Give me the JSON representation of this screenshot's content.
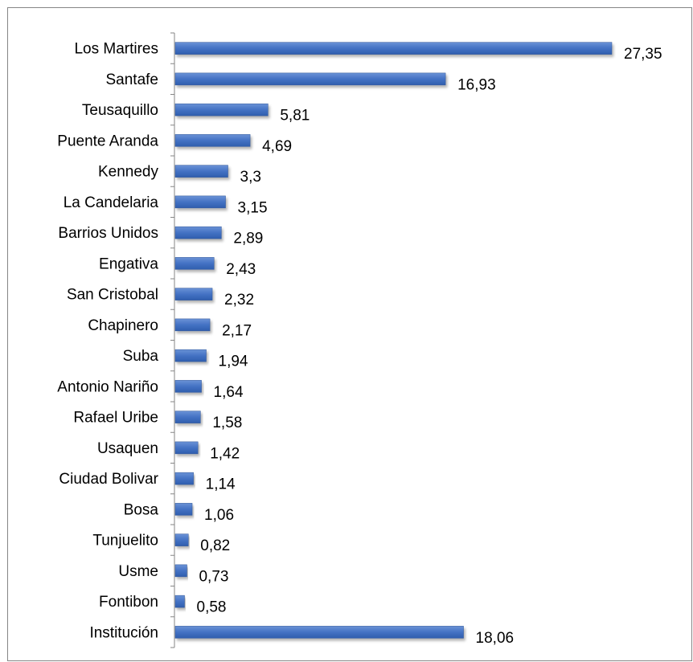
{
  "chart_data": {
    "type": "bar",
    "orientation": "horizontal",
    "categories": [
      "Los Martires",
      "Santafe",
      "Teusaquillo",
      "Puente Aranda",
      "Kennedy",
      "La Candelaria",
      "Barrios Unidos",
      "Engativa",
      "San Cristobal",
      "Chapinero",
      "Suba",
      "Antonio Nariño",
      "Rafael Uribe",
      "Usaquen",
      "Ciudad Bolivar",
      "Bosa",
      "Tunjuelito",
      "Usme",
      "Fontibon",
      "Institución"
    ],
    "values": [
      27.35,
      16.93,
      5.81,
      4.69,
      3.3,
      3.15,
      2.89,
      2.43,
      2.32,
      2.17,
      1.94,
      1.64,
      1.58,
      1.42,
      1.14,
      1.06,
      0.82,
      0.73,
      0.58,
      18.06
    ],
    "value_labels": [
      "27,35",
      "16,93",
      "5,81",
      "4,69",
      "3,3",
      "3,15",
      "2,89",
      "2,43",
      "2,32",
      "2,17",
      "1,94",
      "1,64",
      "1,58",
      "1,42",
      "1,14",
      "1,06",
      "0,82",
      "0,73",
      "0,58",
      "18,06"
    ],
    "title": "",
    "xlabel": "",
    "ylabel": "",
    "xlim": [
      0,
      27.35
    ],
    "grid": false,
    "legend": "none",
    "bar_color": "#4472C4",
    "bar_edge_color": "#2F5597",
    "axis_color": "#868686"
  }
}
